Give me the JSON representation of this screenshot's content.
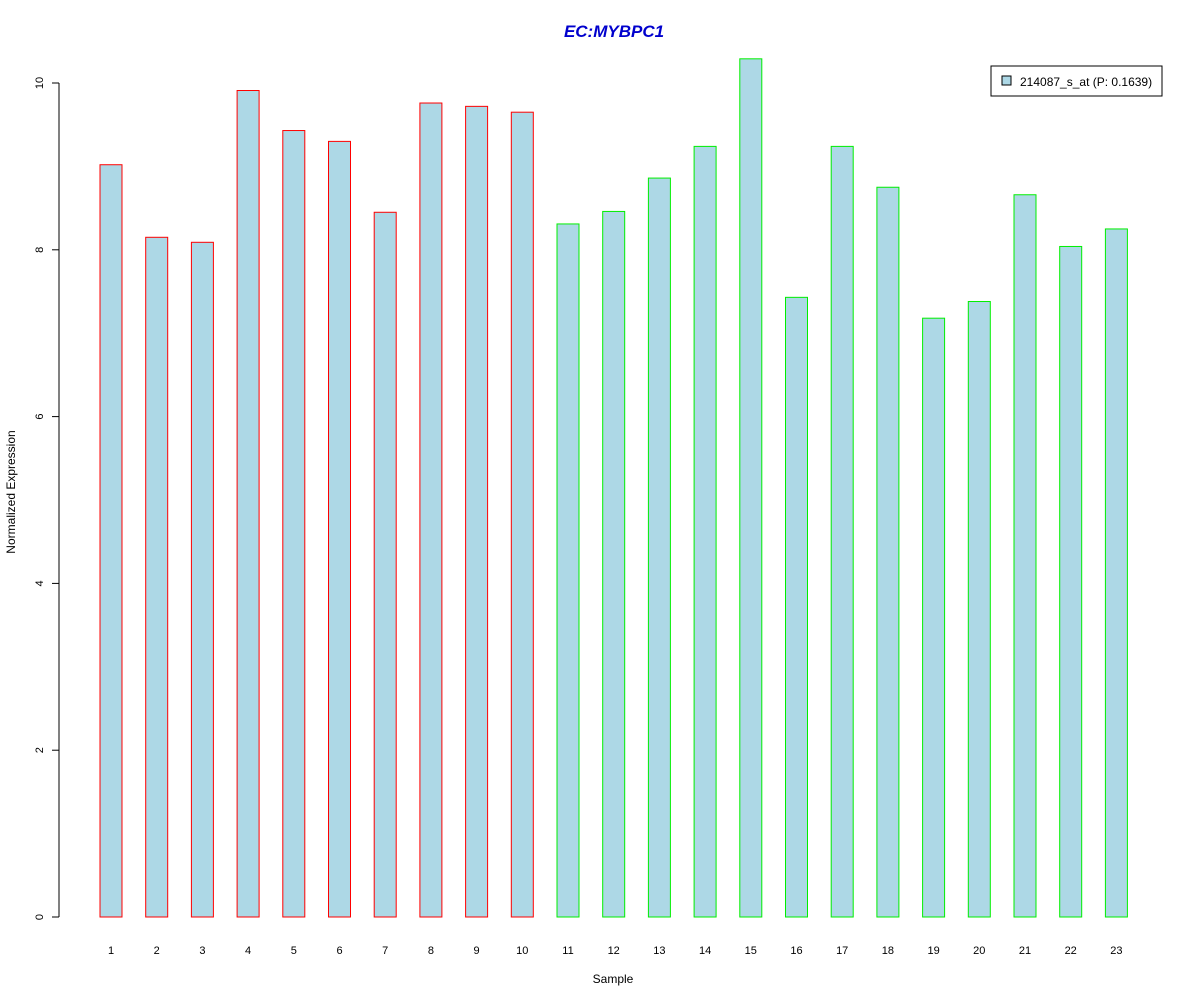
{
  "chart_data": {
    "type": "bar",
    "title": "EC:MYBPC1",
    "xlabel": "Sample",
    "ylabel": "Normalized Expression",
    "categories": [
      "1",
      "2",
      "3",
      "4",
      "5",
      "6",
      "7",
      "8",
      "9",
      "10",
      "11",
      "12",
      "13",
      "14",
      "15",
      "16",
      "17",
      "18",
      "19",
      "20",
      "21",
      "22",
      "23"
    ],
    "series": [
      {
        "name": "214087_s_at (P: 0.1639)",
        "values": [
          9.02,
          8.15,
          8.09,
          9.91,
          9.43,
          9.3,
          8.45,
          9.76,
          9.72,
          9.65,
          8.31,
          8.46,
          8.86,
          9.24,
          10.29,
          7.43,
          9.24,
          8.75,
          7.18,
          7.38,
          8.66,
          8.04,
          8.25
        ]
      }
    ],
    "groups": [
      {
        "samples": [
          "1",
          "2",
          "3",
          "4",
          "5",
          "6",
          "7",
          "8",
          "9",
          "10"
        ],
        "border_color": "#ff0000"
      },
      {
        "samples": [
          "11",
          "12",
          "13",
          "14",
          "15",
          "16",
          "17",
          "18",
          "19",
          "20",
          "21",
          "22",
          "23"
        ],
        "border_color": "#00ee00"
      }
    ],
    "yticks": [
      0,
      2,
      4,
      6,
      8,
      10
    ],
    "ylim": [
      0,
      10.3
    ],
    "grid": false,
    "legend_position": "top-right"
  },
  "colors": {
    "bar_fill": "#add8e6",
    "title": "#0000cd",
    "axis": "#000000"
  }
}
